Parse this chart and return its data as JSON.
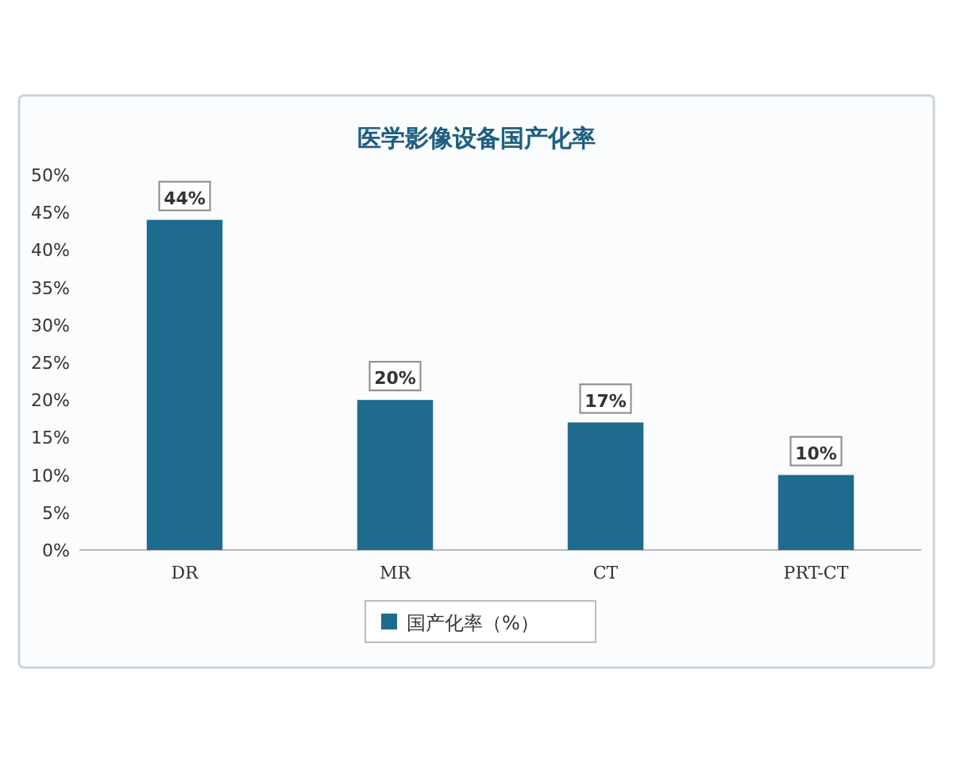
{
  "chart_data": {
    "type": "bar",
    "title": "医学影像设备国产化率",
    "categories": [
      "DR",
      "MR",
      "CT",
      "PRT-CT"
    ],
    "series": [
      {
        "name": "国产化率（%）",
        "color": "#1f6b8e",
        "values": [
          44,
          20,
          17,
          10
        ]
      }
    ],
    "value_labels": [
      "44%",
      "20%",
      "17%",
      "10%"
    ],
    "ylim": [
      0,
      50
    ],
    "yticks": [
      {
        "value": 0,
        "label": "0%"
      },
      {
        "value": 5,
        "label": "5%"
      },
      {
        "value": 10,
        "label": "10%"
      },
      {
        "value": 15,
        "label": "15%"
      },
      {
        "value": 20,
        "label": "20%"
      },
      {
        "value": 25,
        "label": "25%"
      },
      {
        "value": 30,
        "label": "30%"
      },
      {
        "value": 35,
        "label": "35%"
      },
      {
        "value": 40,
        "label": "40%"
      },
      {
        "value": 45,
        "label": "45%"
      },
      {
        "value": 50,
        "label": "50%"
      }
    ],
    "legend": "bottom",
    "grid": false
  }
}
